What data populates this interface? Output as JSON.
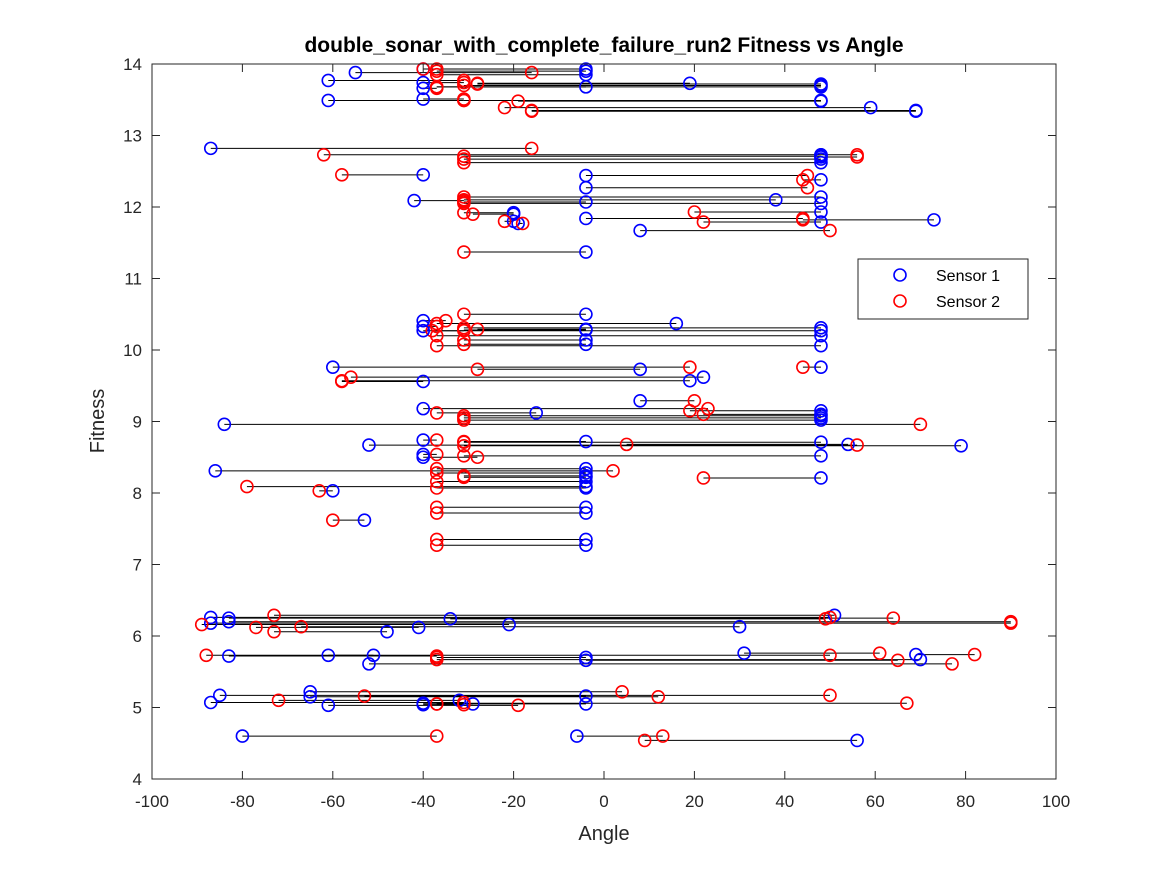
{
  "chart_data": {
    "type": "scatter",
    "title": "double_sonar_with_complete_failure_run2 Fitness vs Angle",
    "xlabel": "Angle",
    "ylabel": "Fitness",
    "xlim": [
      -100,
      100
    ],
    "ylim": [
      4,
      14
    ],
    "xticks": [
      -100,
      -80,
      -60,
      -40,
      -20,
      0,
      20,
      40,
      60,
      80,
      100
    ],
    "yticks": [
      4,
      5,
      6,
      7,
      8,
      9,
      10,
      11,
      12,
      13,
      14
    ],
    "grid": false,
    "legend_position": "right",
    "colors": {
      "sensor1": "#0000ff",
      "sensor2": "#ff0000",
      "connector": "#000000"
    },
    "series": [
      {
        "name": "Sensor 1",
        "color": "#0000ff"
      },
      {
        "name": "Sensor 2",
        "color": "#ff0000"
      }
    ],
    "pairs": [
      {
        "fitness": 13.93,
        "s1": -40,
        "s2": -37
      },
      {
        "fitness": 13.93,
        "s1": -4,
        "s2": -40
      },
      {
        "fitness": 13.9,
        "s1": -4,
        "s2": -37
      },
      {
        "fitness": 13.88,
        "s1": -55,
        "s2": -16
      },
      {
        "fitness": 13.85,
        "s1": -4,
        "s2": -37
      },
      {
        "fitness": 13.77,
        "s1": -61,
        "s2": -31
      },
      {
        "fitness": 13.74,
        "s1": -40,
        "s2": -31
      },
      {
        "fitness": 13.73,
        "s1": 19,
        "s2": -28
      },
      {
        "fitness": 13.72,
        "s1": 48,
        "s2": -28
      },
      {
        "fitness": 13.7,
        "s1": 48,
        "s2": -31
      },
      {
        "fitness": 13.68,
        "s1": -4,
        "s2": -37
      },
      {
        "fitness": 13.68,
        "s1": 48,
        "s2": -37
      },
      {
        "fitness": 13.66,
        "s1": -40,
        "s2": -37
      },
      {
        "fitness": 13.51,
        "s1": -40,
        "s2": -31
      },
      {
        "fitness": 13.49,
        "s1": -61,
        "s2": -31
      },
      {
        "fitness": 13.49,
        "s1": 48,
        "s2": -31
      },
      {
        "fitness": 13.48,
        "s1": 48,
        "s2": -19
      },
      {
        "fitness": 13.39,
        "s1": 59,
        "s2": -22
      },
      {
        "fitness": 13.35,
        "s1": 69,
        "s2": -16
      },
      {
        "fitness": 13.34,
        "s1": 69,
        "s2": -16
      },
      {
        "fitness": 12.82,
        "s1": -87,
        "s2": -16
      },
      {
        "fitness": 12.73,
        "s1": 48,
        "s2": -62
      },
      {
        "fitness": 12.73,
        "s1": 48,
        "s2": 56
      },
      {
        "fitness": 12.71,
        "s1": 48,
        "s2": -31
      },
      {
        "fitness": 12.7,
        "s1": 48,
        "s2": 56
      },
      {
        "fitness": 12.67,
        "s1": 48,
        "s2": -31
      },
      {
        "fitness": 12.62,
        "s1": 48,
        "s2": -31
      },
      {
        "fitness": 12.45,
        "s1": -40,
        "s2": -58
      },
      {
        "fitness": 12.44,
        "s1": -4,
        "s2": 45
      },
      {
        "fitness": 12.38,
        "s1": 48,
        "s2": 44
      },
      {
        "fitness": 12.27,
        "s1": -4,
        "s2": 45
      },
      {
        "fitness": 12.14,
        "s1": 48,
        "s2": -31
      },
      {
        "fitness": 12.1,
        "s1": 38,
        "s2": -31
      },
      {
        "fitness": 12.09,
        "s1": -42,
        "s2": -31
      },
      {
        "fitness": 12.07,
        "s1": -4,
        "s2": -31
      },
      {
        "fitness": 12.05,
        "s1": 48,
        "s2": -31
      },
      {
        "fitness": 11.93,
        "s1": 48,
        "s2": 20
      },
      {
        "fitness": 11.92,
        "s1": -20,
        "s2": -31
      },
      {
        "fitness": 11.9,
        "s1": -20,
        "s2": -29
      },
      {
        "fitness": 11.84,
        "s1": -4,
        "s2": 44
      },
      {
        "fitness": 11.82,
        "s1": 73,
        "s2": 44
      },
      {
        "fitness": 11.8,
        "s1": -20,
        "s2": -22
      },
      {
        "fitness": 11.79,
        "s1": 48,
        "s2": 22
      },
      {
        "fitness": 11.77,
        "s1": -19,
        "s2": -18
      },
      {
        "fitness": 11.67,
        "s1": 8,
        "s2": 50
      },
      {
        "fitness": 11.37,
        "s1": -4,
        "s2": -31
      },
      {
        "fitness": 10.5,
        "s1": -4,
        "s2": -31
      },
      {
        "fitness": 10.41,
        "s1": -40,
        "s2": -35
      },
      {
        "fitness": 10.37,
        "s1": 16,
        "s2": -37
      },
      {
        "fitness": 10.33,
        "s1": -40,
        "s2": -37
      },
      {
        "fitness": 10.31,
        "s1": 48,
        "s2": -31
      },
      {
        "fitness": 10.29,
        "s1": -4,
        "s2": -28
      },
      {
        "fitness": 10.28,
        "s1": -4,
        "s2": -31
      },
      {
        "fitness": 10.27,
        "s1": 48,
        "s2": -38
      },
      {
        "fitness": 10.27,
        "s1": -40,
        "s2": -31
      },
      {
        "fitness": 10.2,
        "s1": 48,
        "s2": -37
      },
      {
        "fitness": 10.14,
        "s1": -4,
        "s2": -31
      },
      {
        "fitness": 10.08,
        "s1": -4,
        "s2": -31
      },
      {
        "fitness": 10.06,
        "s1": 48,
        "s2": -37
      },
      {
        "fitness": 9.76,
        "s1": -60,
        "s2": 19
      },
      {
        "fitness": 9.76,
        "s1": 48,
        "s2": 44
      },
      {
        "fitness": 9.73,
        "s1": 8,
        "s2": -28
      },
      {
        "fitness": 9.62,
        "s1": 22,
        "s2": -56
      },
      {
        "fitness": 9.57,
        "s1": 19,
        "s2": -58
      },
      {
        "fitness": 9.56,
        "s1": -40,
        "s2": -58
      },
      {
        "fitness": 9.29,
        "s1": 8,
        "s2": 20
      },
      {
        "fitness": 9.18,
        "s1": -40,
        "s2": 23
      },
      {
        "fitness": 9.15,
        "s1": 48,
        "s2": 19
      },
      {
        "fitness": 9.12,
        "s1": -15,
        "s2": -37
      },
      {
        "fitness": 9.1,
        "s1": 48,
        "s2": 22
      },
      {
        "fitness": 9.08,
        "s1": 48,
        "s2": -31
      },
      {
        "fitness": 9.05,
        "s1": 48,
        "s2": -31
      },
      {
        "fitness": 9.02,
        "s1": 48,
        "s2": -31
      },
      {
        "fitness": 8.96,
        "s1": -84,
        "s2": 70
      },
      {
        "fitness": 8.74,
        "s1": -40,
        "s2": -37
      },
      {
        "fitness": 8.72,
        "s1": -4,
        "s2": -31
      },
      {
        "fitness": 8.71,
        "s1": 48,
        "s2": -31
      },
      {
        "fitness": 8.68,
        "s1": 54,
        "s2": 5
      },
      {
        "fitness": 8.67,
        "s1": -52,
        "s2": 56
      },
      {
        "fitness": 8.66,
        "s1": 79,
        "s2": -31
      },
      {
        "fitness": 8.54,
        "s1": -40,
        "s2": -37
      },
      {
        "fitness": 8.52,
        "s1": 48,
        "s2": -31
      },
      {
        "fitness": 8.5,
        "s1": -40,
        "s2": -28
      },
      {
        "fitness": 8.34,
        "s1": -4,
        "s2": -37
      },
      {
        "fitness": 8.31,
        "s1": -86,
        "s2": 2
      },
      {
        "fitness": 8.28,
        "s1": -4,
        "s2": -37
      },
      {
        "fitness": 8.24,
        "s1": -4,
        "s2": -31
      },
      {
        "fitness": 8.22,
        "s1": -4,
        "s2": -31
      },
      {
        "fitness": 8.21,
        "s1": 48,
        "s2": 22
      },
      {
        "fitness": 8.16,
        "s1": -4,
        "s2": -37
      },
      {
        "fitness": 8.09,
        "s1": -4,
        "s2": -79
      },
      {
        "fitness": 8.07,
        "s1": -4,
        "s2": -37
      },
      {
        "fitness": 8.03,
        "s1": -60,
        "s2": -63
      },
      {
        "fitness": 7.8,
        "s1": -4,
        "s2": -37
      },
      {
        "fitness": 7.72,
        "s1": -4,
        "s2": -37
      },
      {
        "fitness": 7.62,
        "s1": -53,
        "s2": -60
      },
      {
        "fitness": 7.35,
        "s1": -4,
        "s2": -37
      },
      {
        "fitness": 7.27,
        "s1": -4,
        "s2": -37
      },
      {
        "fitness": 6.29,
        "s1": 51,
        "s2": -73
      },
      {
        "fitness": 6.26,
        "s1": -87,
        "s2": 50
      },
      {
        "fitness": 6.25,
        "s1": -83,
        "s2": 64
      },
      {
        "fitness": 6.24,
        "s1": -34,
        "s2": 49
      },
      {
        "fitness": 6.2,
        "s1": -83,
        "s2": 90
      },
      {
        "fitness": 6.18,
        "s1": -87,
        "s2": 90
      },
      {
        "fitness": 6.16,
        "s1": -21,
        "s2": -89
      },
      {
        "fitness": 6.13,
        "s1": 30,
        "s2": -67
      },
      {
        "fitness": 6.12,
        "s1": -41,
        "s2": -77
      },
      {
        "fitness": 6.06,
        "s1": -48,
        "s2": -73
      },
      {
        "fitness": 5.76,
        "s1": 31,
        "s2": 61
      },
      {
        "fitness": 5.74,
        "s1": 69,
        "s2": 82
      },
      {
        "fitness": 5.73,
        "s1": -51,
        "s2": -88
      },
      {
        "fitness": 5.73,
        "s1": -61,
        "s2": 50
      },
      {
        "fitness": 5.72,
        "s1": -83,
        "s2": -37
      },
      {
        "fitness": 5.7,
        "s1": -4,
        "s2": -37
      },
      {
        "fitness": 5.67,
        "s1": 70,
        "s2": -37
      },
      {
        "fitness": 5.66,
        "s1": -4,
        "s2": 65
      },
      {
        "fitness": 5.61,
        "s1": -52,
        "s2": 77
      },
      {
        "fitness": 5.22,
        "s1": -65,
        "s2": 4
      },
      {
        "fitness": 5.17,
        "s1": -85,
        "s2": 50
      },
      {
        "fitness": 5.16,
        "s1": -4,
        "s2": -53
      },
      {
        "fitness": 5.15,
        "s1": -65,
        "s2": 12
      },
      {
        "fitness": 5.1,
        "s1": -32,
        "s2": -72
      },
      {
        "fitness": 5.07,
        "s1": -87,
        "s2": -31
      },
      {
        "fitness": 5.06,
        "s1": -40,
        "s2": 67
      },
      {
        "fitness": 5.05,
        "s1": -4,
        "s2": -37
      },
      {
        "fitness": 5.05,
        "s1": -29,
        "s2": -37
      },
      {
        "fitness": 5.04,
        "s1": -40,
        "s2": -31
      },
      {
        "fitness": 5.03,
        "s1": -61,
        "s2": -19
      },
      {
        "fitness": 4.6,
        "s1": -6,
        "s2": 13
      },
      {
        "fitness": 4.6,
        "s1": -80,
        "s2": -37
      },
      {
        "fitness": 4.54,
        "s1": 56,
        "s2": 9
      }
    ]
  }
}
